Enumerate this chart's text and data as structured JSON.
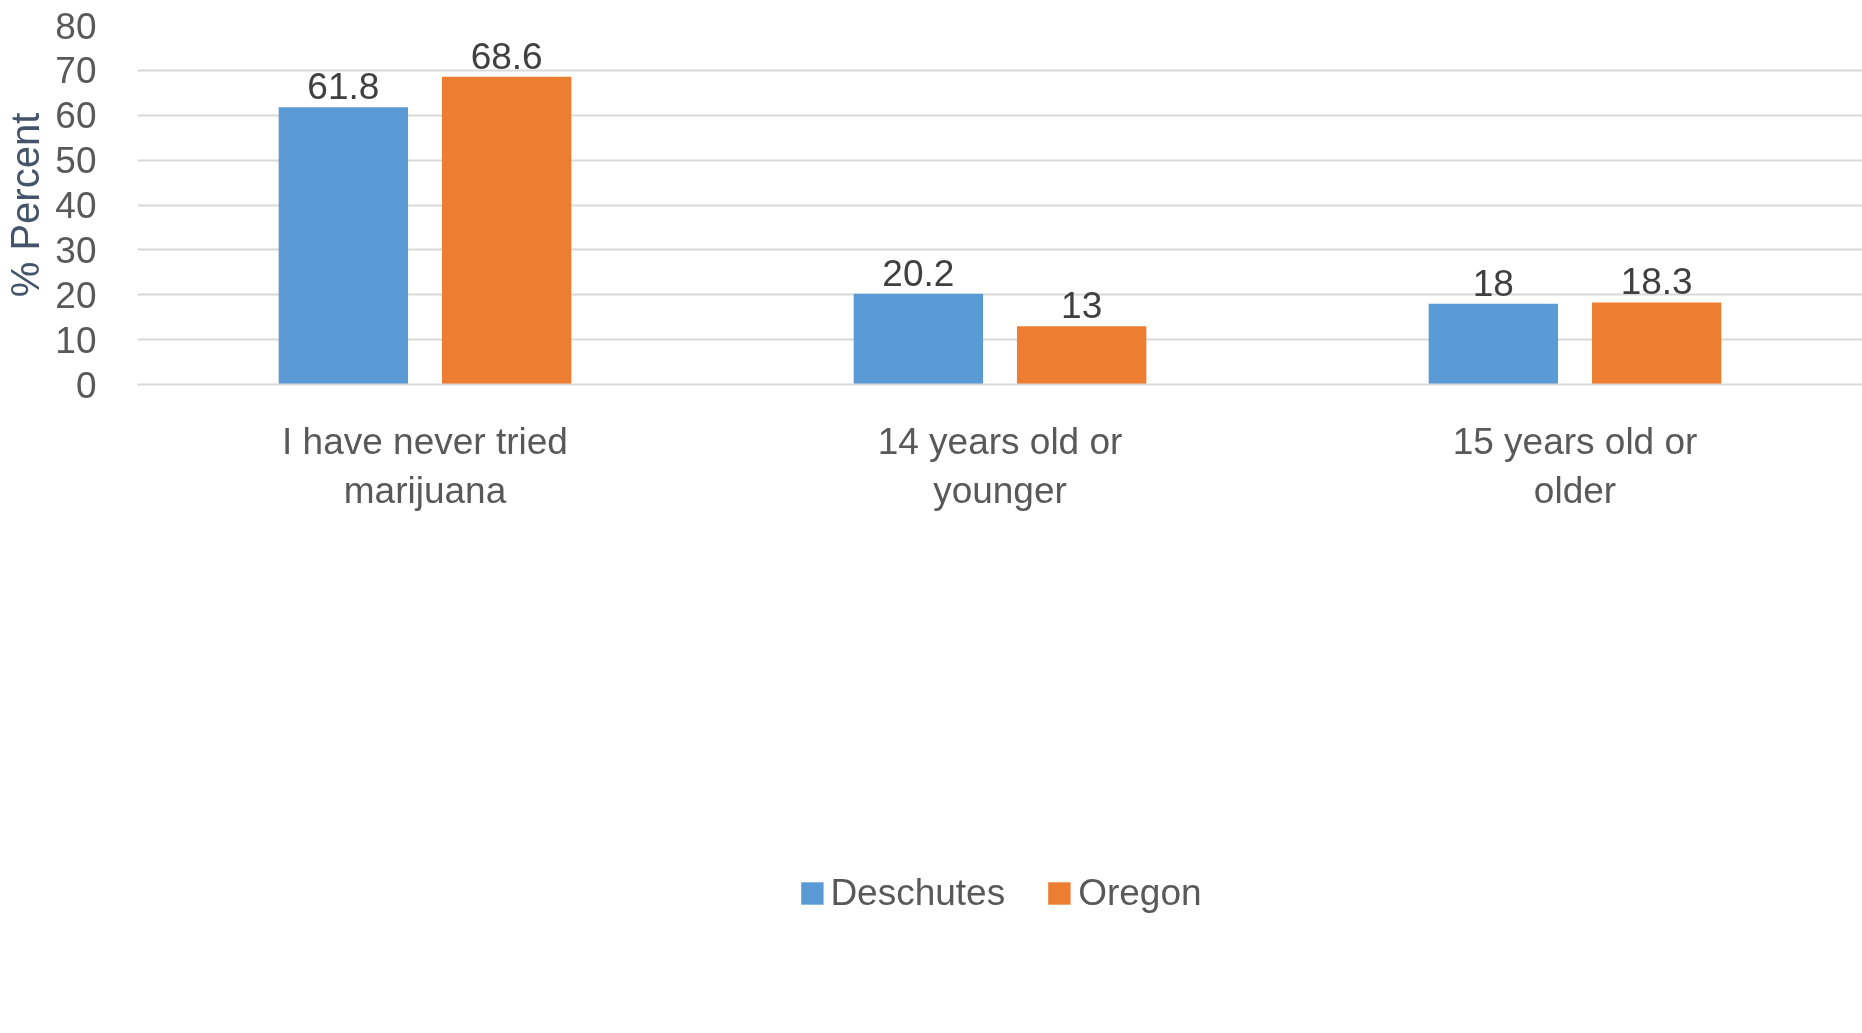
{
  "chart_data": {
    "type": "bar",
    "ylabel": "% Percent",
    "categories": [
      "I have never tried marijuana",
      "14 years old or younger",
      "15 years old or older"
    ],
    "series": [
      {
        "name": "Deschutes",
        "color": "#5b9bd5",
        "values": [
          61.8,
          20.2,
          18
        ]
      },
      {
        "name": "Oregon",
        "color": "#ed7d31",
        "values": [
          68.6,
          13,
          18.3
        ]
      }
    ],
    "ylim": [
      0,
      80
    ],
    "yticks": [
      0,
      10,
      20,
      30,
      40,
      50,
      60,
      70,
      80
    ],
    "grid": "y",
    "legend": "bottom",
    "data_labels": true
  }
}
